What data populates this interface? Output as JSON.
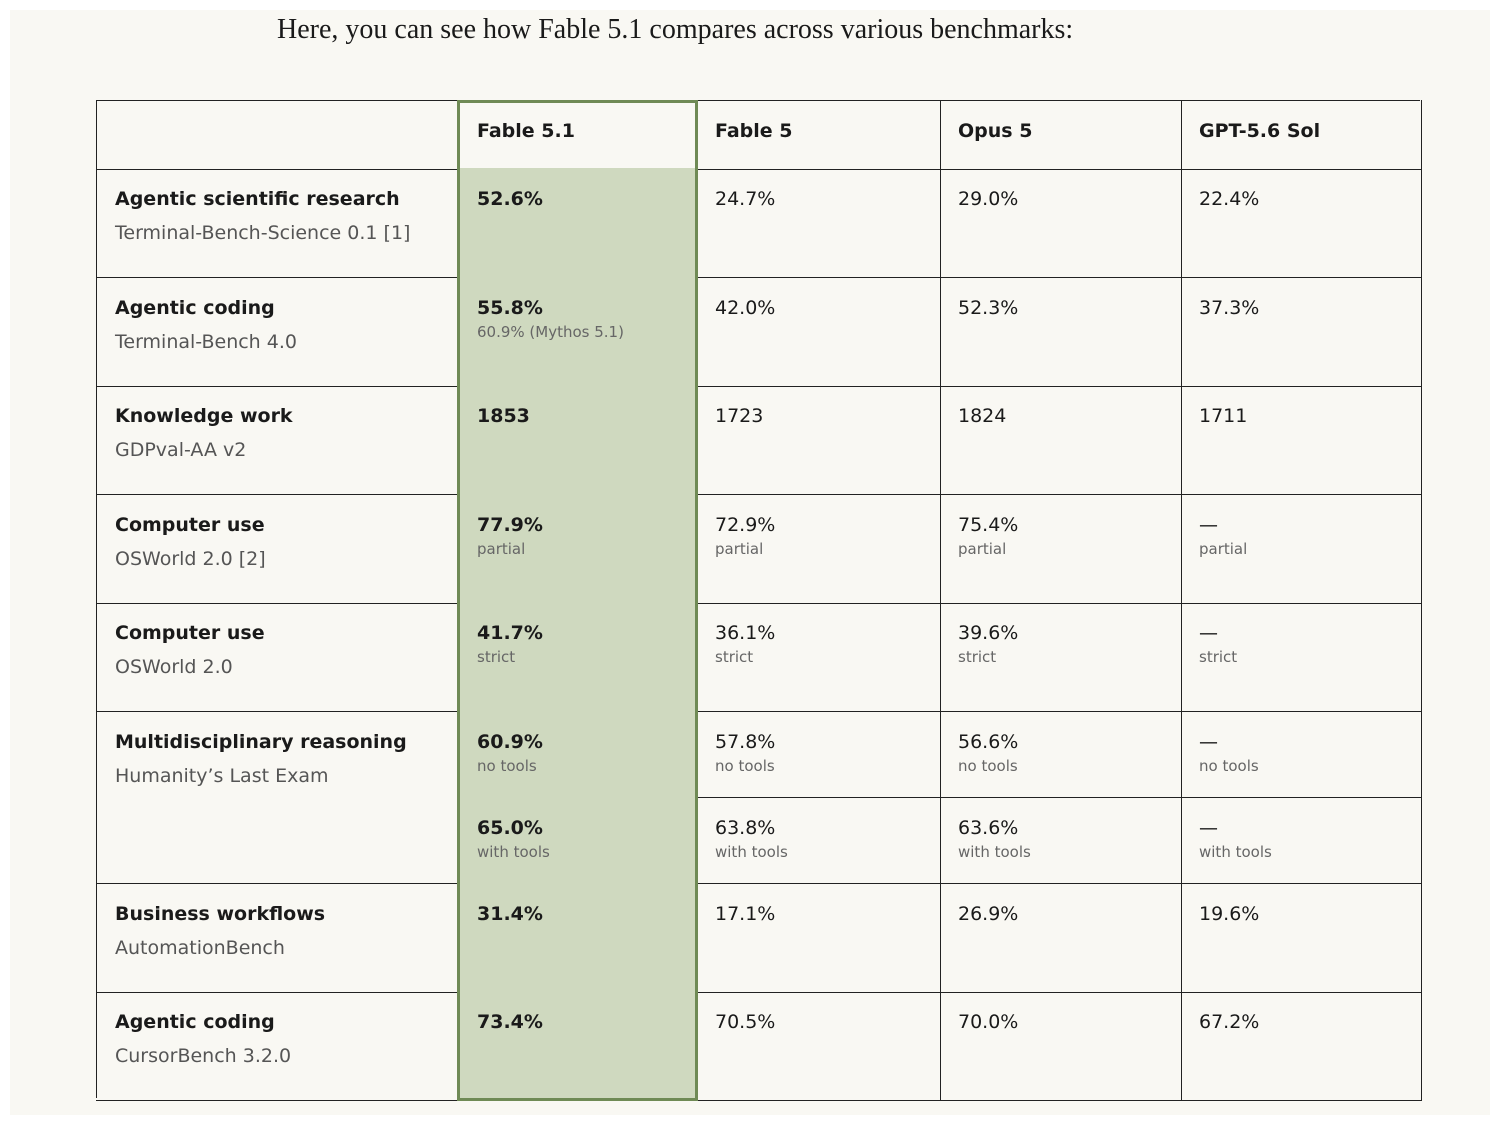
{
  "intro": "Here, you can see how Fable 5.1 compares across various benchmarks:",
  "table": {
    "columns": [
      "Fable 5.1",
      "Fable 5",
      "Opus 5",
      "GPT-5.6 Sol"
    ],
    "rows": [
      {
        "task": "Agentic scientific research",
        "benchmark": "Terminal-Bench-Science 0.1 [1]",
        "results": [
          [
            {
              "value": "52.6%"
            },
            {
              "value": "24.7%"
            },
            {
              "value": "29.0%"
            },
            {
              "value": "22.4%"
            }
          ]
        ]
      },
      {
        "task": "Agentic coding",
        "benchmark": "Terminal-Bench 4.0",
        "results": [
          [
            {
              "value": "55.8%",
              "note": "60.9% (Mythos 5.1)"
            },
            {
              "value": "42.0%"
            },
            {
              "value": "52.3%"
            },
            {
              "value": "37.3%"
            }
          ]
        ]
      },
      {
        "task": "Knowledge work",
        "benchmark": "GDPval-AA v2",
        "results": [
          [
            {
              "value": "1853"
            },
            {
              "value": "1723"
            },
            {
              "value": "1824"
            },
            {
              "value": "1711"
            }
          ]
        ]
      },
      {
        "task": "Computer use",
        "benchmark": "OSWorld 2.0 [2]",
        "results": [
          [
            {
              "value": "77.9%",
              "note": "partial"
            },
            {
              "value": "72.9%",
              "note": "partial"
            },
            {
              "value": "75.4%",
              "note": "partial"
            },
            {
              "value": "—",
              "note": "partial"
            }
          ]
        ]
      },
      {
        "task": "Computer use",
        "benchmark": "OSWorld 2.0",
        "results": [
          [
            {
              "value": "41.7%",
              "note": "strict"
            },
            {
              "value": "36.1%",
              "note": "strict"
            },
            {
              "value": "39.6%",
              "note": "strict"
            },
            {
              "value": "—",
              "note": "strict"
            }
          ]
        ]
      },
      {
        "task": "Multidisciplinary reasoning",
        "benchmark": "Humanity’s Last Exam",
        "results": [
          [
            {
              "value": "60.9%",
              "note": "no tools"
            },
            {
              "value": "57.8%",
              "note": "no tools"
            },
            {
              "value": "56.6%",
              "note": "no tools"
            },
            {
              "value": "—",
              "note": "no tools"
            }
          ],
          [
            {
              "value": "65.0%",
              "note": "with tools"
            },
            {
              "value": "63.8%",
              "note": "with tools"
            },
            {
              "value": "63.6%",
              "note": "with tools"
            },
            {
              "value": "—",
              "note": "with tools"
            }
          ]
        ]
      },
      {
        "task": "Business workflows",
        "benchmark": "AutomationBench",
        "results": [
          [
            {
              "value": "31.4%"
            },
            {
              "value": "17.1%"
            },
            {
              "value": "26.9%"
            },
            {
              "value": "19.6%"
            }
          ]
        ]
      },
      {
        "task": "Agentic coding",
        "benchmark": "CursorBench 3.2.0",
        "results": [
          [
            {
              "value": "73.4%"
            },
            {
              "value": "70.5%"
            },
            {
              "value": "70.0%"
            },
            {
              "value": "67.2%"
            }
          ]
        ]
      }
    ]
  }
}
